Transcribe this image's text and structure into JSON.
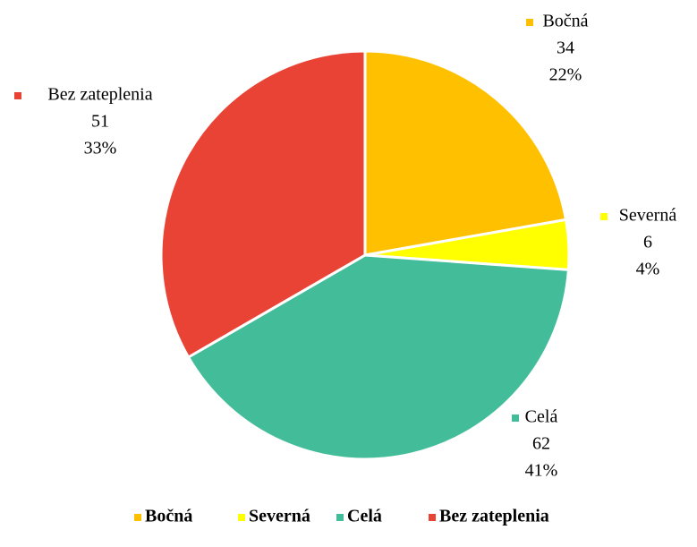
{
  "chart_data": {
    "type": "pie",
    "categories": [
      "Bočná",
      "Severná",
      "Celá",
      "Bez zateplenia"
    ],
    "values": [
      34,
      6,
      62,
      51
    ],
    "percent_labels": [
      "22%",
      "4%",
      "41%",
      "33%"
    ],
    "colors": [
      "#ffc000",
      "#ffff00",
      "#43bc99",
      "#e94335"
    ],
    "legend": "bottom"
  }
}
